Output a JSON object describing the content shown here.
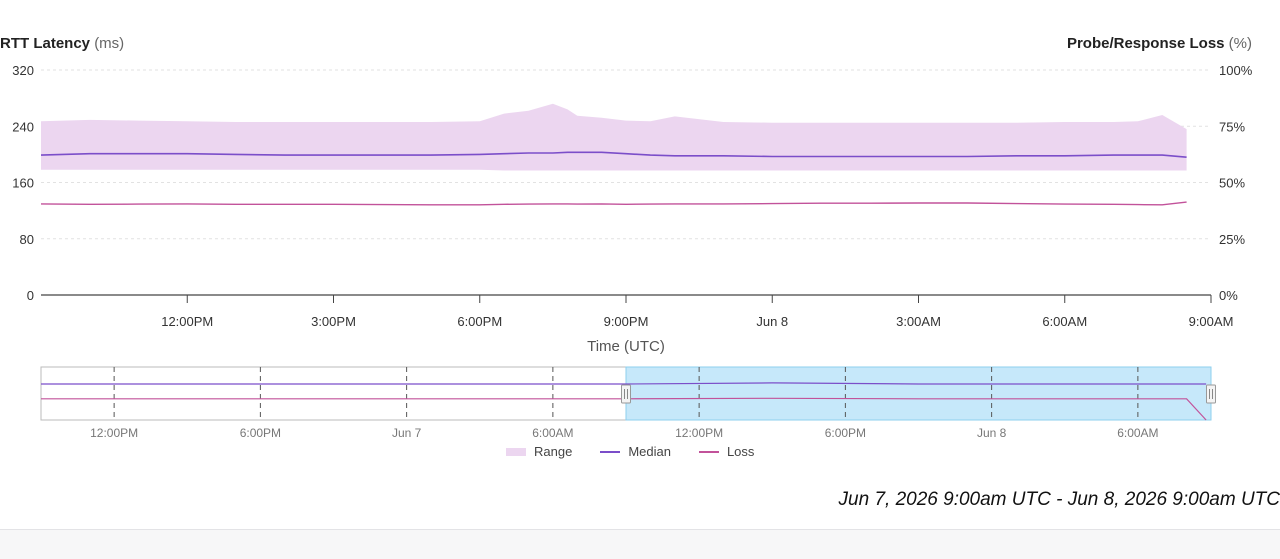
{
  "left_title": {
    "main": "RTT Latency",
    "unit": "(ms)"
  },
  "right_title": {
    "main": "Probe/Response Loss",
    "unit": "(%)"
  },
  "date_range": "Jun 7, 2026 9:00am UTC - Jun 8, 2026 9:00am UTC",
  "colors": {
    "range_fill": "#ecd6f0",
    "median": "#7b4ec9",
    "loss": "#c2529a",
    "selection": "#c6e8fa",
    "grid": "#e2e2e2",
    "axis": "#444444"
  },
  "legend": [
    {
      "label": "Range",
      "kind": "area",
      "color": "#ecd6f0"
    },
    {
      "label": "Median",
      "kind": "line",
      "color": "#7b4ec9"
    },
    {
      "label": "Loss",
      "kind": "line",
      "color": "#c2529a"
    }
  ],
  "chart_data": [
    {
      "type": "line",
      "xlabel": "Time (UTC)",
      "ylabel_left": "RTT Latency (ms)",
      "ylabel_right": "Probe/Response Loss (%)",
      "x_range_hours": [
        0,
        24
      ],
      "ylim_left": [
        0,
        320
      ],
      "ylim_right": [
        0,
        100
      ],
      "left_ticks": [
        "0",
        "80",
        "160",
        "240",
        "320"
      ],
      "right_ticks": [
        "0%",
        "25%",
        "50%",
        "75%",
        "100%"
      ],
      "x_ticks": [
        {
          "h": 3,
          "label": "12:00PM"
        },
        {
          "h": 6,
          "label": "3:00PM"
        },
        {
          "h": 9,
          "label": "6:00PM"
        },
        {
          "h": 12,
          "label": "9:00PM"
        },
        {
          "h": 15,
          "label": "Jun 8"
        },
        {
          "h": 18,
          "label": "3:00AM"
        },
        {
          "h": 21,
          "label": "6:00AM"
        },
        {
          "h": 24,
          "label": "9:00AM"
        }
      ],
      "grid": true,
      "legend_position": "bottom",
      "x_hours": [
        0,
        1,
        2,
        3,
        4,
        5,
        6,
        7,
        8,
        9,
        9.5,
        10,
        10.5,
        10.8,
        11,
        11.5,
        12,
        12.5,
        13,
        14,
        15,
        16,
        17,
        18,
        19,
        20,
        21,
        22,
        22.5,
        23,
        23.5
      ],
      "series": [
        {
          "name": "Range",
          "kind": "band",
          "upper": [
            247,
            249,
            248,
            247,
            246,
            246,
            246,
            246,
            246,
            247,
            258,
            262,
            272,
            264,
            255,
            252,
            248,
            247,
            254,
            246,
            245,
            245,
            245,
            245,
            245,
            245,
            246,
            246,
            247,
            256,
            236
          ],
          "lower": [
            178,
            178,
            178,
            178,
            178,
            178,
            178,
            178,
            178,
            178,
            177,
            177,
            177,
            177,
            177,
            177,
            177,
            177,
            177,
            177,
            177,
            177,
            177,
            177,
            177,
            177,
            177,
            177,
            177,
            177,
            177
          ]
        },
        {
          "name": "Median",
          "values": [
            199,
            201,
            201,
            201,
            200,
            199,
            199,
            199,
            199,
            200,
            201,
            202,
            202,
            203,
            203,
            203,
            201,
            199,
            198,
            198,
            197,
            197,
            197,
            197,
            197,
            198,
            198,
            199,
            199,
            199,
            196
          ]
        },
        {
          "name": "Loss",
          "axis": "right",
          "values": [
            40.5,
            40.3,
            40.4,
            40.5,
            40.3,
            40.3,
            40.3,
            40.2,
            40.1,
            40.1,
            40.3,
            40.4,
            40.5,
            40.5,
            40.4,
            40.5,
            40.3,
            40.4,
            40.5,
            40.5,
            40.6,
            40.8,
            40.8,
            40.9,
            40.9,
            40.6,
            40.4,
            40.3,
            40.2,
            40.1,
            41.3
          ]
        }
      ]
    },
    {
      "type": "line",
      "role": "navigator",
      "x_range_hours": [
        0,
        48
      ],
      "selected_hours": [
        24,
        48
      ],
      "x_ticks": [
        {
          "h": 3,
          "label": "12:00PM"
        },
        {
          "h": 9,
          "label": "6:00PM"
        },
        {
          "h": 15,
          "label": "Jun 7"
        },
        {
          "h": 21,
          "label": "6:00AM"
        },
        {
          "h": 27,
          "label": "12:00PM"
        },
        {
          "h": 33,
          "label": "6:00PM"
        },
        {
          "h": 39,
          "label": "Jun 8"
        },
        {
          "h": 45,
          "label": "6:00AM"
        }
      ],
      "x_hours": [
        0,
        6,
        12,
        24,
        30,
        36,
        42,
        47,
        47.8
      ],
      "series": [
        {
          "name": "Median",
          "values": [
            0.68,
            0.68,
            0.68,
            0.68,
            0.7,
            0.68,
            0.68,
            0.68,
            0.68
          ]
        },
        {
          "name": "Loss",
          "values": [
            0.4,
            0.4,
            0.4,
            0.4,
            0.41,
            0.4,
            0.4,
            0.4,
            0.0
          ]
        }
      ]
    }
  ]
}
